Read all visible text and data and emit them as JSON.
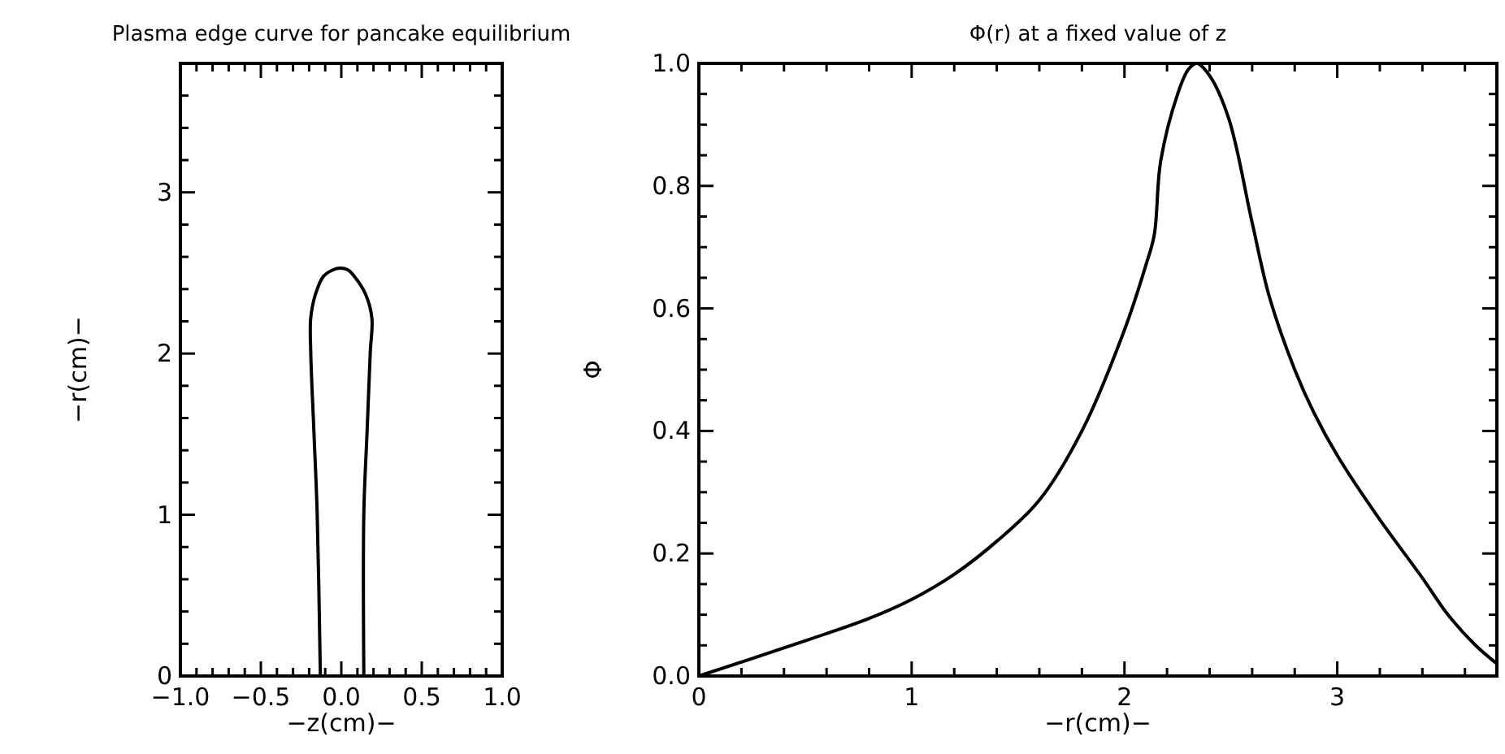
{
  "chart_data": [
    {
      "type": "line",
      "title": "Plasma edge curve for pancake equilibrium",
      "xlabel": "−z(cm)−",
      "ylabel": "−r(cm)−",
      "xlim": [
        -1,
        1
      ],
      "ylim": [
        0,
        3.8
      ],
      "xticks": [
        {
          "value": -1,
          "label": "−1.0"
        },
        {
          "value": -0.9,
          "label": null
        },
        {
          "value": -0.8,
          "label": null
        },
        {
          "value": -0.7,
          "label": null
        },
        {
          "value": -0.6,
          "label": null
        },
        {
          "value": -0.5,
          "label": "−0.5"
        },
        {
          "value": -0.4,
          "label": null
        },
        {
          "value": -0.3,
          "label": null
        },
        {
          "value": -0.2,
          "label": null
        },
        {
          "value": -0.1,
          "label": null
        },
        {
          "value": 0,
          "label": "0.0"
        },
        {
          "value": 0.1,
          "label": null
        },
        {
          "value": 0.2,
          "label": null
        },
        {
          "value": 0.3,
          "label": null
        },
        {
          "value": 0.4,
          "label": null
        },
        {
          "value": 0.5,
          "label": "0.5"
        },
        {
          "value": 0.6,
          "label": null
        },
        {
          "value": 0.7,
          "label": null
        },
        {
          "value": 0.8,
          "label": null
        },
        {
          "value": 0.9,
          "label": null
        },
        {
          "value": 1,
          "label": "1.0"
        }
      ],
      "yticks": [
        0,
        {
          "value": 0.2,
          "label": null
        },
        {
          "value": 0.4,
          "label": null
        },
        {
          "value": 0.6,
          "label": null
        },
        {
          "value": 0.8,
          "label": null
        },
        1,
        {
          "value": 1.2,
          "label": null
        },
        {
          "value": 1.4,
          "label": null
        },
        {
          "value": 1.6,
          "label": null
        },
        {
          "value": 1.8,
          "label": null
        },
        2,
        {
          "value": 2.2,
          "label": null
        },
        {
          "value": 2.4,
          "label": null
        },
        {
          "value": 2.6,
          "label": null
        },
        {
          "value": 2.8,
          "label": null
        },
        3,
        {
          "value": 3.2,
          "label": null
        },
        {
          "value": 3.4,
          "label": null
        },
        {
          "value": 3.6,
          "label": null
        }
      ],
      "series": [
        {
          "color": "#000000",
          "x": [
            -0.13,
            -0.15,
            -0.17,
            -0.19,
            -0.19,
            -0.16,
            -0.11,
            -0.05,
            -0.01,
            0.04,
            0.08,
            0.15,
            0.19,
            0.18,
            0.16,
            0.14,
            0.14
          ],
          "values": [
            0,
            1.01,
            1.51,
            2.01,
            2.22,
            2.37,
            2.48,
            2.52,
            2.53,
            2.52,
            2.48,
            2.37,
            2.22,
            2.01,
            1.51,
            1.01,
            0
          ]
        }
      ]
    },
    {
      "type": "line",
      "title": "Φ(r) at a fixed value of z",
      "xlabel": "−r(cm)−",
      "ylabel": "Φ",
      "xlim": [
        0,
        3.75
      ],
      "ylim": [
        0,
        1
      ],
      "xticks": [
        0,
        {
          "value": 0.2,
          "label": null
        },
        {
          "value": 0.4,
          "label": null
        },
        {
          "value": 0.6,
          "label": null
        },
        {
          "value": 0.8,
          "label": null
        },
        1,
        {
          "value": 1.2,
          "label": null
        },
        {
          "value": 1.4,
          "label": null
        },
        {
          "value": 1.6,
          "label": null
        },
        {
          "value": 1.8,
          "label": null
        },
        2,
        {
          "value": 2.2,
          "label": null
        },
        {
          "value": 2.4,
          "label": null
        },
        {
          "value": 2.6,
          "label": null
        },
        {
          "value": 2.8,
          "label": null
        },
        3,
        {
          "value": 3.2,
          "label": null
        },
        {
          "value": 3.4,
          "label": null
        },
        {
          "value": 3.6,
          "label": null
        }
      ],
      "yticks": [
        {
          "value": 0,
          "label": "0.0"
        },
        {
          "value": 0.05,
          "label": null
        },
        {
          "value": 0.1,
          "label": null
        },
        {
          "value": 0.15,
          "label": null
        },
        {
          "value": 0.2,
          "label": "0.2"
        },
        {
          "value": 0.25,
          "label": null
        },
        {
          "value": 0.3,
          "label": null
        },
        {
          "value": 0.35,
          "label": null
        },
        {
          "value": 0.4,
          "label": "0.4"
        },
        {
          "value": 0.45,
          "label": null
        },
        {
          "value": 0.5,
          "label": null
        },
        {
          "value": 0.55,
          "label": null
        },
        {
          "value": 0.6,
          "label": "0.6"
        },
        {
          "value": 0.65,
          "label": null
        },
        {
          "value": 0.7,
          "label": null
        },
        {
          "value": 0.75,
          "label": null
        },
        {
          "value": 0.8,
          "label": "0.8"
        },
        {
          "value": 0.85,
          "label": null
        },
        {
          "value": 0.9,
          "label": null
        },
        {
          "value": 0.95,
          "label": null
        },
        {
          "value": 1,
          "label": "1.0"
        }
      ],
      "series": [
        {
          "color": "#000000",
          "x": [
            0,
            0.4,
            0.8,
            1,
            1.2,
            1.4,
            1.6,
            1.8,
            2,
            2.1,
            2.14,
            2.17,
            2.25,
            2.3,
            2.34,
            2.4,
            2.49,
            2.6,
            2.68,
            2.8,
            2.89,
            3,
            3.19,
            3.4,
            3.52,
            3.65,
            3.75
          ],
          "values": [
            0,
            0.046,
            0.094,
            0.125,
            0.166,
            0.22,
            0.287,
            0.4,
            0.565,
            0.67,
            0.72,
            0.84,
            0.95,
            0.99,
            1,
            0.98,
            0.91,
            0.74,
            0.62,
            0.5,
            0.43,
            0.36,
            0.26,
            0.16,
            0.1,
            0.05,
            0.02
          ]
        }
      ]
    }
  ]
}
